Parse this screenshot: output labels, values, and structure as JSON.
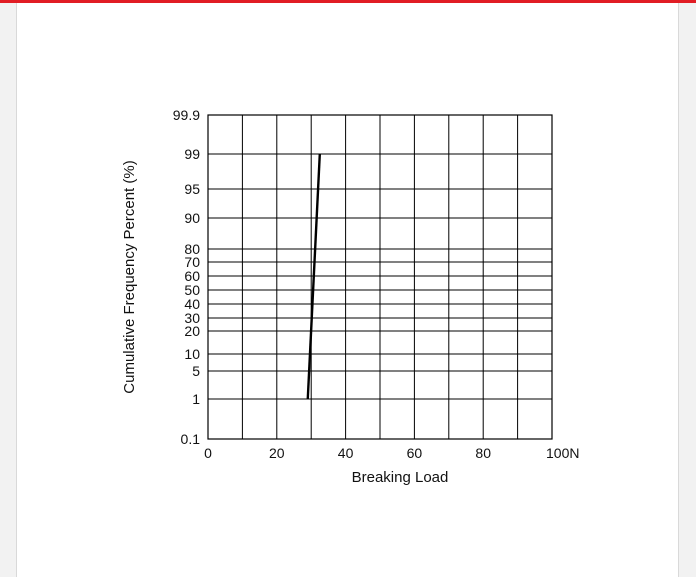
{
  "colors": {
    "accent_bar": "#e11d24",
    "grid": "#000000",
    "line": "#000000"
  },
  "chart_data": {
    "type": "line",
    "title": "",
    "xlabel": "Breaking Load",
    "ylabel": "Cumulative Frequency Percent (%)",
    "x_ticks": [
      "0",
      "20",
      "40",
      "60",
      "80",
      "100N"
    ],
    "x_tick_values": [
      0,
      20,
      40,
      60,
      80,
      100
    ],
    "xlim": [
      0,
      100
    ],
    "y_scale": "normal-probability",
    "y_ticks": [
      "0.1",
      "1",
      "5",
      "10",
      "20",
      "30",
      "40",
      "50",
      "60",
      "70",
      "80",
      "90",
      "95",
      "99",
      "99.9"
    ],
    "y_tick_values": [
      0.1,
      1,
      5,
      10,
      20,
      30,
      40,
      50,
      60,
      70,
      80,
      90,
      95,
      99,
      99.9
    ],
    "ylim": [
      0.1,
      99.9
    ],
    "grid": true,
    "series": [
      {
        "x": [
          29,
          32.5
        ],
        "y": [
          1,
          99
        ]
      }
    ]
  }
}
